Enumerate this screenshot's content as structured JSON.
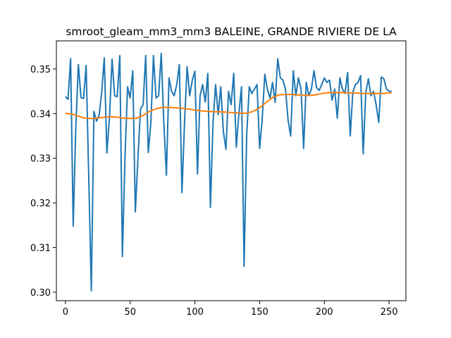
{
  "chart_data": {
    "type": "line",
    "title": "smroot_gleam_mm3_mm3 BALEINE, GRANDE RIVIERE DE LA",
    "xlabel": "",
    "ylabel": "",
    "xlim": [
      -7,
      263
    ],
    "ylim": [
      0.2981,
      0.3563
    ],
    "xticks": [
      0,
      50,
      100,
      150,
      200,
      250
    ],
    "xtick_labels": [
      "0",
      "50",
      "100",
      "150",
      "200",
      "250"
    ],
    "yticks": [
      0.3,
      0.31,
      0.32,
      0.33,
      0.34,
      0.35
    ],
    "ytick_labels": [
      "0.30",
      "0.31",
      "0.32",
      "0.33",
      "0.34",
      "0.35"
    ],
    "grid": false,
    "legend": "none",
    "series": [
      {
        "color": "#1f77b4",
        "x": [
          0,
          2,
          4,
          6,
          8,
          10,
          12,
          14,
          16,
          18,
          20,
          22,
          24,
          26,
          28,
          30,
          32,
          34,
          36,
          38,
          40,
          42,
          44,
          46,
          48,
          50,
          52,
          54,
          56,
          58,
          60,
          62,
          64,
          66,
          68,
          70,
          72,
          74,
          76,
          78,
          80,
          82,
          84,
          86,
          88,
          90,
          92,
          94,
          96,
          98,
          100,
          102,
          104,
          106,
          108,
          110,
          112,
          114,
          116,
          118,
          120,
          122,
          124,
          126,
          128,
          130,
          132,
          134,
          136,
          138,
          140,
          142,
          144,
          146,
          148,
          150,
          152,
          154,
          156,
          158,
          160,
          162,
          164,
          166,
          168,
          170,
          172,
          174,
          176,
          178,
          180,
          182,
          184,
          186,
          188,
          190,
          192,
          194,
          196,
          198,
          200,
          202,
          204,
          206,
          208,
          210,
          212,
          214,
          216,
          218,
          220,
          222,
          224,
          226,
          228,
          230,
          232,
          234,
          236,
          238,
          240,
          242,
          244,
          246,
          248,
          250,
          252
        ],
        "values": [
          0.3438,
          0.3432,
          0.3523,
          0.3148,
          0.337,
          0.351,
          0.3436,
          0.3434,
          0.3508,
          0.3258,
          0.3003,
          0.3405,
          0.3383,
          0.3396,
          0.3447,
          0.3525,
          0.3312,
          0.339,
          0.3522,
          0.344,
          0.3438,
          0.353,
          0.308,
          0.33,
          0.346,
          0.3435,
          0.3496,
          0.318,
          0.33,
          0.341,
          0.342,
          0.353,
          0.3313,
          0.338,
          0.353,
          0.3435,
          0.344,
          0.3535,
          0.338,
          0.3262,
          0.348,
          0.345,
          0.344,
          0.3465,
          0.351,
          0.3223,
          0.338,
          0.3505,
          0.344,
          0.3475,
          0.3495,
          0.3265,
          0.344,
          0.3465,
          0.3426,
          0.349,
          0.319,
          0.338,
          0.3465,
          0.3398,
          0.346,
          0.336,
          0.332,
          0.345,
          0.342,
          0.349,
          0.3325,
          0.34,
          0.346,
          0.3058,
          0.335,
          0.346,
          0.3445,
          0.3455,
          0.3465,
          0.3322,
          0.3388,
          0.3488,
          0.3455,
          0.3435,
          0.347,
          0.3425,
          0.3523,
          0.348,
          0.3475,
          0.3455,
          0.3385,
          0.335,
          0.3496,
          0.344,
          0.348,
          0.3455,
          0.3322,
          0.347,
          0.344,
          0.3455,
          0.3496,
          0.3458,
          0.3452,
          0.3465,
          0.348,
          0.347,
          0.3475,
          0.343,
          0.3455,
          0.339,
          0.348,
          0.3455,
          0.3445,
          0.3492,
          0.335,
          0.3448,
          0.3465,
          0.347,
          0.3485,
          0.331,
          0.3447,
          0.3478,
          0.344,
          0.345,
          0.342,
          0.338,
          0.3482,
          0.3478,
          0.3455,
          0.345,
          0.345
        ]
      },
      {
        "color": "#ff7f0e",
        "x": [
          0,
          5,
          10,
          15,
          20,
          25,
          30,
          35,
          40,
          45,
          50,
          55,
          60,
          65,
          70,
          75,
          80,
          85,
          90,
          95,
          100,
          105,
          110,
          115,
          120,
          125,
          130,
          135,
          140,
          145,
          150,
          155,
          160,
          165,
          170,
          175,
          180,
          185,
          190,
          195,
          200,
          205,
          210,
          215,
          220,
          225,
          230,
          235,
          240,
          245,
          250,
          252
        ],
        "values": [
          0.3401,
          0.3399,
          0.3394,
          0.339,
          0.3389,
          0.339,
          0.3392,
          0.3393,
          0.3392,
          0.339,
          0.3389,
          0.339,
          0.3396,
          0.3405,
          0.3411,
          0.3414,
          0.3414,
          0.3413,
          0.3412,
          0.341,
          0.3408,
          0.3406,
          0.3405,
          0.3404,
          0.3404,
          0.3403,
          0.3402,
          0.3401,
          0.3401,
          0.3405,
          0.3413,
          0.3425,
          0.3436,
          0.3442,
          0.3443,
          0.3443,
          0.3442,
          0.3441,
          0.3441,
          0.3443,
          0.3446,
          0.3447,
          0.3447,
          0.3447,
          0.3446,
          0.3446,
          0.3445,
          0.3445,
          0.3445,
          0.3445,
          0.3446,
          0.3446
        ]
      }
    ]
  }
}
